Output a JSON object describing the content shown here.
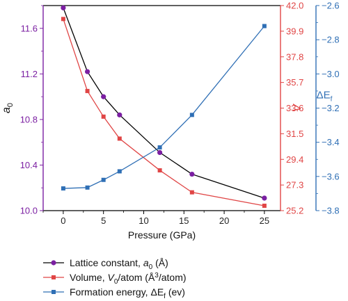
{
  "chart_data": {
    "type": "line",
    "xlabel": "Pressure (GPa)",
    "xlim": [
      -2.5,
      27
    ],
    "x_ticks": [
      "0",
      "5",
      "10",
      "15",
      "20",
      "25"
    ],
    "x": [
      0,
      3,
      5,
      7,
      12,
      16,
      25
    ],
    "axes": {
      "left": {
        "label_main": "a",
        "label_sub": "0",
        "ylim": [
          10.0,
          11.8
        ],
        "ticks": [
          "10.0",
          "10.4",
          "10.8",
          "11.2",
          "11.6"
        ],
        "color": "#7b1fa2"
      },
      "right1": {
        "label": "V",
        "ylim": [
          25.2,
          42.0
        ],
        "ticks": [
          "25.2",
          "27.3",
          "29.4",
          "31.5",
          "33.6",
          "35.7",
          "37.8",
          "39.9",
          "42.0"
        ],
        "color": "#e04545"
      },
      "right2": {
        "label_main": "ΔE",
        "label_sub": "f",
        "ylim": [
          -3.8,
          -2.6
        ],
        "ticks": [
          "-3.8",
          "-3.6",
          "-3.4",
          "-3.2",
          "-3.0",
          "-2.8",
          "-2.6"
        ],
        "color": "#2f6fb5"
      }
    },
    "series": [
      {
        "axis": "left",
        "color": "#7b1fa2",
        "line_color": "#000000",
        "marker": "circle",
        "legend_parts": [
          "Lattice constant, ",
          "a",
          "0",
          " (Å)"
        ],
        "values": [
          11.78,
          11.22,
          11.0,
          10.84,
          10.51,
          10.32,
          10.11
        ]
      },
      {
        "axis": "right1",
        "color": "#e04545",
        "line_color": "#e04545",
        "marker": "square",
        "legend_parts": [
          "Volume, ",
          "V",
          "0",
          "/atom (Å",
          "3",
          "/atom)"
        ],
        "values": [
          40.9,
          35.0,
          32.9,
          31.1,
          28.5,
          26.7,
          25.6
        ]
      },
      {
        "axis": "right2",
        "color": "#2f6fb5",
        "line_color": "#2f6fb5",
        "marker": "square",
        "legend_parts": [
          "Formation energy, ",
          "ΔE",
          "f",
          " (ev)"
        ],
        "values": [
          -3.67,
          -3.665,
          -3.62,
          -3.57,
          -3.43,
          -3.24,
          -2.72
        ]
      }
    ],
    "legend_position": "bottom-left",
    "grid": false
  }
}
